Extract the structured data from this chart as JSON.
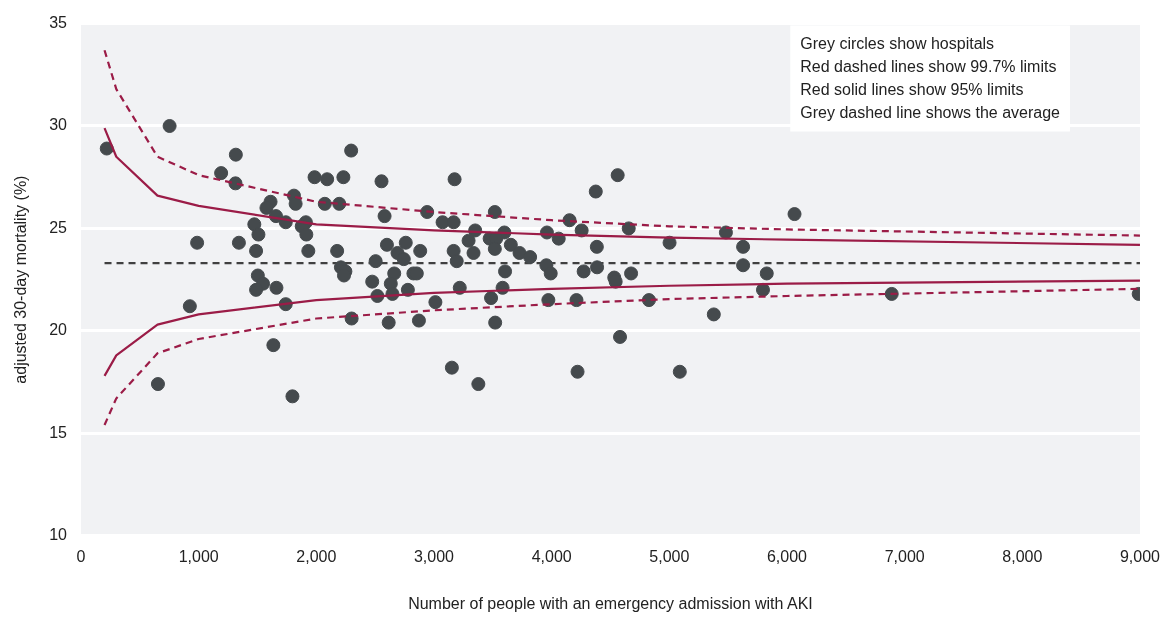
{
  "chart_data": {
    "type": "scatter",
    "xlabel": "Number of people with an emergency admission with AKI",
    "ylabel": "adjusted 30-day mortality (%)",
    "xlim": [
      0,
      9000
    ],
    "xticks": [
      {
        "value": 0,
        "label": "0"
      },
      {
        "value": 1000,
        "label": "1,000"
      },
      {
        "value": 2000,
        "label": "2,000"
      },
      {
        "value": 3000,
        "label": "3,000"
      },
      {
        "value": 4000,
        "label": "4,000"
      },
      {
        "value": 5000,
        "label": "5,000"
      },
      {
        "value": 6000,
        "label": "6,000"
      },
      {
        "value": 7000,
        "label": "7,000"
      },
      {
        "value": 8000,
        "label": "8,000"
      },
      {
        "value": 9000,
        "label": "9,000"
      }
    ],
    "ylim": [
      10,
      35
    ],
    "yticks": [
      10,
      15,
      20,
      25,
      30,
      35
    ],
    "grid": "y",
    "legend": false,
    "marker": "circle",
    "annotations": [
      "Grey circles show hospitals",
      "Red dashed lines show 99.7% limits",
      "Red solid lines show 95% limits",
      "Grey dashed line shows the average"
    ],
    "ref_lines": [
      {
        "axis": "y",
        "value": 23.3,
        "color": "#404040",
        "line_style": "dashed"
      }
    ],
    "series": [
      {
        "color": "#454a4d",
        "x": [
          219,
          753,
          1316,
          1191,
          1313,
          1985,
          2092,
          2230,
          2296,
          2554,
          1810,
          1824,
          1611,
          1576,
          2072,
          2195,
          2942,
          1657,
          1740,
          1473,
          1508,
          1911,
          1876,
          1915,
          2580,
          987,
          1342,
          1488,
          1932,
          2177,
          2600,
          2760,
          2883,
          2690,
          2743,
          2504,
          2209,
          2247,
          2235,
          1503,
          1547,
          1488,
          1661,
          2662,
          2825,
          2854,
          2475,
          2633,
          2519,
          2647,
          2778,
          1740,
          925,
          3012,
          2300,
          2615,
          2872,
          1635,
          654,
          1797,
          3152,
          3175,
          4561,
          4375,
          3517,
          4152,
          3073,
          3167,
          3350,
          4255,
          4655,
          5481,
          3598,
          3960,
          4060,
          3294,
          3473,
          3528,
          3517,
          3653,
          3727,
          3817,
          3167,
          3336,
          4384,
          5002,
          5627,
          3193,
          3955,
          3992,
          4272,
          4386,
          3604,
          4532,
          4544,
          4675,
          5627,
          5828,
          3219,
          3583,
          3485,
          3972,
          4211,
          4827,
          5796,
          3520,
          5378,
          4581,
          3377,
          4220,
          5089,
          6064,
          6890,
          8989
        ],
        "values": [
          28.9,
          30.0,
          28.6,
          27.7,
          27.2,
          27.5,
          27.4,
          27.5,
          28.8,
          27.3,
          26.6,
          26.2,
          26.3,
          26.0,
          26.2,
          26.2,
          25.8,
          25.6,
          25.3,
          25.2,
          24.7,
          25.3,
          25.1,
          24.7,
          25.6,
          24.3,
          24.3,
          23.9,
          23.9,
          23.9,
          24.2,
          24.3,
          23.9,
          23.8,
          23.5,
          23.4,
          23.1,
          22.9,
          22.7,
          22.7,
          22.3,
          22.0,
          22.1,
          22.8,
          22.8,
          22.8,
          22.4,
          22.3,
          21.7,
          21.8,
          22.0,
          21.3,
          21.2,
          21.4,
          20.6,
          20.4,
          20.5,
          19.3,
          17.4,
          16.8,
          18.2,
          27.4,
          27.6,
          26.8,
          25.8,
          25.4,
          25.3,
          25.3,
          24.9,
          24.9,
          25.0,
          24.8,
          24.8,
          24.8,
          24.5,
          24.4,
          24.5,
          24.5,
          24.0,
          24.2,
          23.8,
          23.6,
          23.9,
          23.8,
          24.1,
          24.3,
          24.1,
          23.4,
          23.2,
          22.8,
          22.9,
          23.1,
          22.9,
          22.6,
          22.4,
          22.8,
          23.2,
          22.8,
          22.1,
          22.1,
          21.6,
          21.5,
          21.5,
          21.5,
          22.0,
          20.4,
          20.8,
          19.7,
          17.4,
          18.0,
          18.0,
          25.7,
          21.8,
          21.8
        ]
      },
      {
        "type": "line",
        "color": "#9b1c47",
        "line_style": "solid",
        "marker": "none",
        "x": [
          200,
          300,
          650,
          1000,
          2000,
          3000,
          4000,
          5000,
          6000,
          9000
        ],
        "values": [
          29.9,
          28.5,
          26.6,
          26.1,
          25.2,
          24.9,
          24.7,
          24.55,
          24.45,
          24.2
        ]
      },
      {
        "type": "line",
        "color": "#9b1c47",
        "line_style": "solid",
        "marker": "none",
        "x": [
          200,
          300,
          650,
          1000,
          2000,
          3000,
          4000,
          5000,
          6000,
          9000
        ],
        "values": [
          17.8,
          18.8,
          20.3,
          20.8,
          21.5,
          21.85,
          22.05,
          22.2,
          22.3,
          22.45
        ]
      },
      {
        "type": "line",
        "color": "#9b1c47",
        "line_style": "dashed",
        "marker": "none",
        "x": [
          200,
          300,
          650,
          1000,
          2000,
          3000,
          4000,
          5000,
          6000,
          9000
        ],
        "values": [
          33.7,
          31.8,
          28.5,
          27.6,
          26.3,
          25.8,
          25.4,
          25.1,
          24.95,
          24.65
        ]
      },
      {
        "type": "line",
        "color": "#9b1c47",
        "line_style": "dashed",
        "marker": "none",
        "x": [
          200,
          300,
          650,
          1000,
          2000,
          3000,
          4000,
          5000,
          6000,
          9000
        ],
        "values": [
          15.4,
          16.7,
          18.9,
          19.6,
          20.6,
          21.0,
          21.3,
          21.55,
          21.7,
          22.05
        ]
      }
    ]
  }
}
